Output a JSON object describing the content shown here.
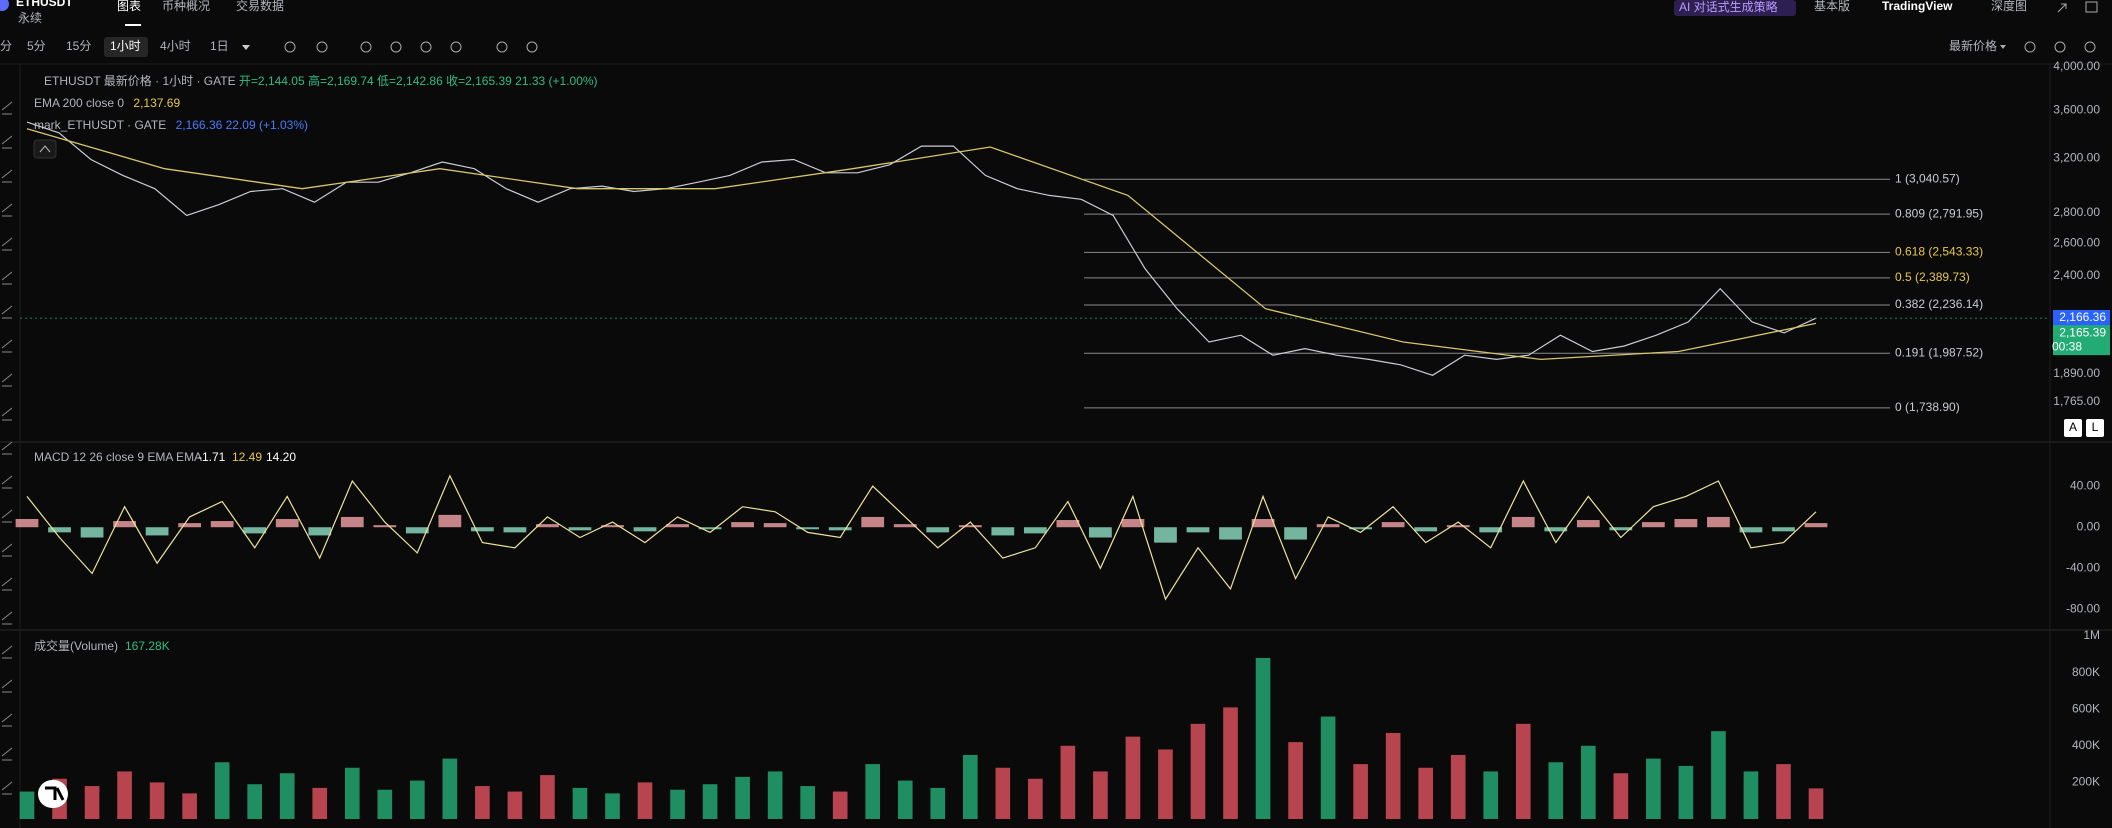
{
  "header": {
    "symbol": "ETHUSDT",
    "sub": "永续",
    "tabs": [
      "图表",
      "币种概况",
      "交易数据"
    ],
    "ai": "AI 对话式生成策略",
    "right_tabs": [
      "基本版",
      "TradingView",
      "深度图"
    ]
  },
  "toolbar": {
    "intervals": [
      "分",
      "5分",
      "15分",
      "1小时",
      "4小时",
      "1日"
    ],
    "selected": 3,
    "price_source": "最新价格"
  },
  "legend": {
    "title": "ETHUSDT 最新价格 · 1小时 · GATE",
    "ohlc": "开=2,144.05 高=2,169.74 低=2,142.86 收=2,165.39",
    "change": "21.33 (+1.00%)",
    "ema_name": "EMA 200 close 0",
    "ema_value": "2,137.69",
    "mark_name": "mark_ETHUSDT · GATE",
    "mark_value": "2,166.36 22.09 (+1.03%)"
  },
  "chart_data": [
    {
      "type": "line",
      "log_scale": true,
      "grid": false,
      "ylim": [
        1600,
        4000
      ],
      "yticks": [
        {
          "value": 4000,
          "label": "4,000.00"
        },
        {
          "value": 3600,
          "label": "3,600.00"
        },
        {
          "value": 3200,
          "label": "3,200.00"
        },
        {
          "value": 2800,
          "label": "2,800.00"
        },
        {
          "value": 2600,
          "label": "2,600.00"
        },
        {
          "value": 2400,
          "label": "2,400.00"
        },
        {
          "value": 1890,
          "label": "1,890.00"
        },
        {
          "value": 1765,
          "label": "1,765.00"
        }
      ],
      "series": [
        {
          "color": "#c9ccd4",
          "values": [
            3496,
            3406,
            3191,
            3069,
            2971,
            2783,
            2857,
            2951,
            2971,
            2875,
            3019,
            3019,
            3089,
            3171,
            3120,
            2971,
            2875,
            2971,
            2990,
            2951,
            2971,
            3019,
            3069,
            3171,
            3191,
            3089,
            3089,
            3150,
            3297,
            3297,
            3069,
            2971,
            2923,
            2895,
            2783,
            2443,
            2216,
            2043,
            2077,
            1978,
            2010,
            1978,
            1958,
            1932,
            1883,
            1978,
            1958,
            1978,
            2077,
            1996,
            2023,
            2077,
            2145,
            2327,
            2145,
            2089,
            2165.39
          ]
        },
        {
          "color": "#d8c56a",
          "values": [
            3440,
            3120,
            2971,
            3120,
            2971,
            2971,
            3120,
            3290,
            2923,
            2216,
            2043,
            1958,
            1996,
            2137.69
          ]
        }
      ],
      "fib_levels": [
        {
          "label": "1 (3,040.57)",
          "value": 3040.57,
          "color": "#c9ccd4"
        },
        {
          "label": "0.809 (2,791.95)",
          "value": 2791.95,
          "color": "#c9ccd4"
        },
        {
          "label": "0.618 (2,543.33)",
          "value": 2543.33,
          "color": "#e7c84a"
        },
        {
          "label": "0.5 (2,389.73)",
          "value": 2389.73,
          "color": "#e7c84a"
        },
        {
          "label": "0.382 (2,236.14)",
          "value": 2236.14,
          "color": "#c9ccd4"
        },
        {
          "label": "0.191 (1,987.52)",
          "value": 1987.52,
          "color": "#c9ccd4"
        },
        {
          "label": "0 (1,738.90)",
          "value": 1738.9,
          "color": "#c9ccd4"
        }
      ],
      "price_tags": [
        {
          "label": "2,166.36",
          "value": 2166.36,
          "color": "#2962ff"
        },
        {
          "label": "2,165.39",
          "value": 2165.39,
          "countdown": "00:38",
          "color": "#22ab74"
        }
      ],
      "axis_buttons": [
        "A",
        "L"
      ]
    },
    {
      "type": "macd",
      "title": "MACD 12 26 close 9 EMA EMA",
      "legend_values": [
        "-1.71",
        "12.49",
        "14.20"
      ],
      "ylim": [
        -100,
        80
      ],
      "yticks": [
        {
          "value": 40,
          "label": "40.00"
        },
        {
          "value": 0,
          "label": "0.00"
        },
        {
          "value": -40,
          "label": "-40.00"
        },
        {
          "value": -80,
          "label": "-80.00"
        }
      ],
      "series": [
        {
          "color": "#efe39a",
          "values": [
            30,
            -10,
            -45,
            20,
            -35,
            10,
            25,
            -20,
            30,
            -30,
            45,
            5,
            -25,
            50,
            -15,
            -20,
            10,
            -10,
            5,
            -15,
            10,
            -5,
            20,
            15,
            -5,
            -10,
            40,
            10,
            -20,
            5,
            -30,
            -20,
            25,
            -40,
            30,
            -70,
            -20,
            -60,
            30,
            -50,
            10,
            -5,
            20,
            -15,
            5,
            -20,
            45,
            -15,
            30,
            -10,
            20,
            30,
            45,
            -20,
            -15,
            15
          ]
        }
      ],
      "histogram": {
        "up": "#f4a3a6",
        "down": "#8fe0c6",
        "values": [
          8,
          -5,
          -10,
          6,
          -8,
          4,
          6,
          -6,
          8,
          -8,
          10,
          2,
          -6,
          12,
          -4,
          -5,
          3,
          -3,
          2,
          -4,
          3,
          -2,
          5,
          4,
          -2,
          -3,
          10,
          3,
          -5,
          2,
          -8,
          -6,
          7,
          -10,
          8,
          -15,
          -5,
          -12,
          8,
          -12,
          3,
          -2,
          5,
          -4,
          2,
          -5,
          10,
          -4,
          7,
          -3,
          5,
          8,
          10,
          -5,
          -4,
          4
        ]
      }
    },
    {
      "type": "bar",
      "title": "成交量(Volume)",
      "last": "167.28K",
      "up": "#1f8f63",
      "down": "#b8444f",
      "ylim": [
        0,
        1000000
      ],
      "yticks": [
        {
          "value": 1000000,
          "label": "1M"
        },
        {
          "value": 800000,
          "label": "800K"
        },
        {
          "value": 600000,
          "label": "600K"
        },
        {
          "value": 400000,
          "label": "400K"
        },
        {
          "value": 200000,
          "label": "200K"
        }
      ],
      "values": [
        150000,
        220000,
        180000,
        260000,
        200000,
        140000,
        310000,
        190000,
        250000,
        170000,
        280000,
        160000,
        210000,
        330000,
        180000,
        150000,
        240000,
        170000,
        140000,
        200000,
        160000,
        190000,
        230000,
        260000,
        180000,
        150000,
        300000,
        210000,
        170000,
        350000,
        280000,
        220000,
        400000,
        260000,
        450000,
        380000,
        520000,
        610000,
        880000,
        420000,
        560000,
        300000,
        470000,
        280000,
        350000,
        260000,
        520000,
        310000,
        400000,
        250000,
        330000,
        290000,
        480000,
        260000,
        300000,
        167280
      ]
    }
  ]
}
